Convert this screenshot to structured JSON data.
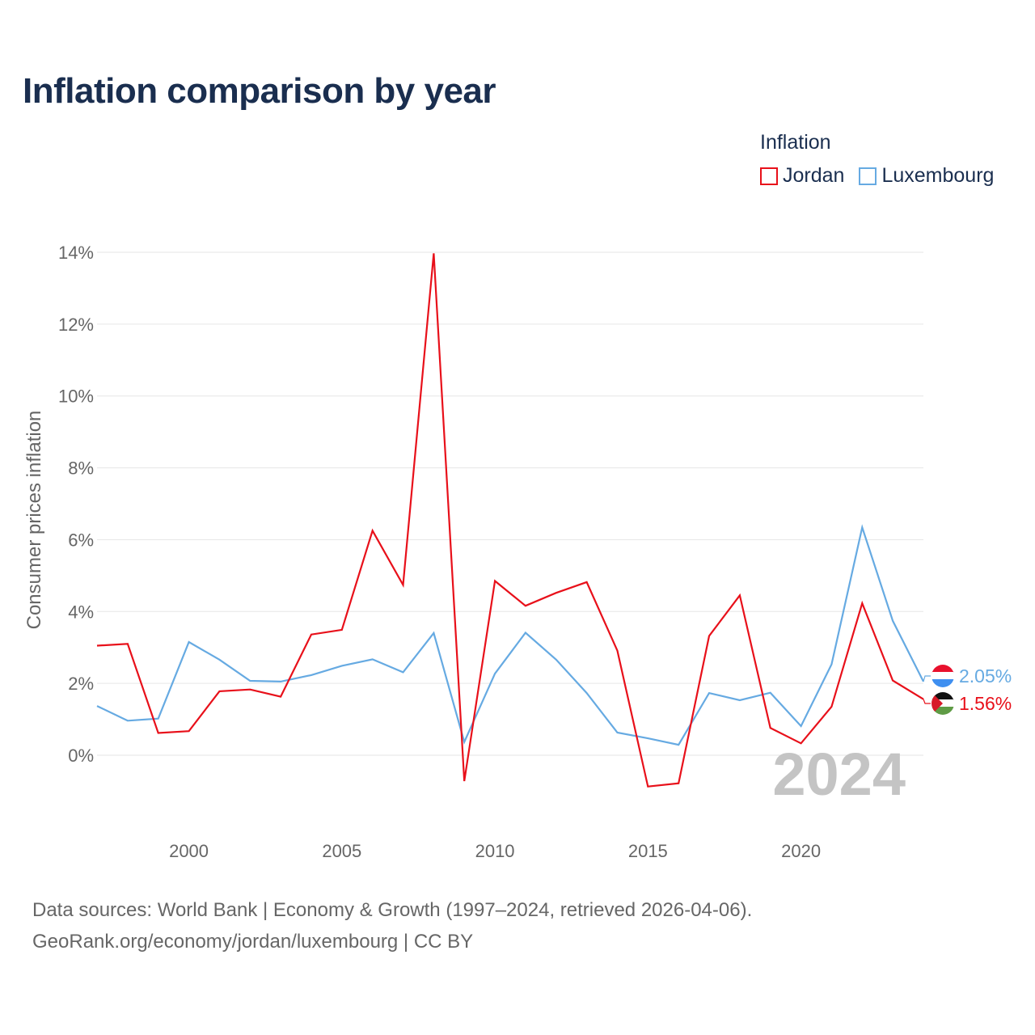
{
  "title": "Inflation comparison by year",
  "legend": {
    "title": "Inflation",
    "items": [
      {
        "label": "Jordan",
        "color": "#e8101a"
      },
      {
        "label": "Luxembourg",
        "color": "#66aae2"
      }
    ]
  },
  "year_watermark": "2024",
  "footer": {
    "line1": "Data sources: World Bank | Economy & Growth (1997–2024, retrieved 2026-04-06).",
    "line2": "GeoRank.org/economy/jordan/luxembourg | CC BY"
  },
  "chart_data": {
    "type": "line",
    "title": "Inflation comparison by year",
    "xlabel": "",
    "ylabel": "Consumer prices inflation",
    "xlim": [
      1997,
      2024
    ],
    "ylim": [
      -2,
      14
    ],
    "x_ticks": [
      2000,
      2005,
      2010,
      2015,
      2020
    ],
    "y_ticks": [
      0,
      2,
      4,
      6,
      8,
      10,
      12,
      14
    ],
    "y_tick_labels": [
      "0%",
      "2%",
      "4%",
      "6%",
      "8%",
      "10%",
      "12%",
      "14%"
    ],
    "grid": true,
    "legend_position": "top-right",
    "x": [
      1997,
      1998,
      1999,
      2000,
      2001,
      2002,
      2003,
      2004,
      2005,
      2006,
      2007,
      2008,
      2009,
      2010,
      2011,
      2012,
      2013,
      2014,
      2015,
      2016,
      2017,
      2018,
      2019,
      2020,
      2021,
      2022,
      2023,
      2024
    ],
    "series": [
      {
        "name": "Jordan",
        "color": "#e8101a",
        "end_label": "1.56%",
        "values": [
          3.05,
          3.1,
          0.62,
          0.67,
          1.78,
          1.83,
          1.63,
          3.36,
          3.49,
          6.25,
          4.74,
          13.97,
          -0.72,
          4.85,
          4.16,
          4.52,
          4.82,
          2.91,
          -0.87,
          -0.78,
          3.32,
          4.45,
          0.76,
          0.33,
          1.35,
          4.23,
          2.08,
          1.56
        ]
      },
      {
        "name": "Luxembourg",
        "color": "#66aae2",
        "end_label": "2.05%",
        "values": [
          1.37,
          0.96,
          1.02,
          3.15,
          2.66,
          2.07,
          2.05,
          2.23,
          2.49,
          2.67,
          2.31,
          3.4,
          0.37,
          2.27,
          3.41,
          2.66,
          1.73,
          0.63,
          0.47,
          0.29,
          1.73,
          1.53,
          1.74,
          0.81,
          2.53,
          6.34,
          3.74,
          2.05
        ]
      }
    ]
  }
}
